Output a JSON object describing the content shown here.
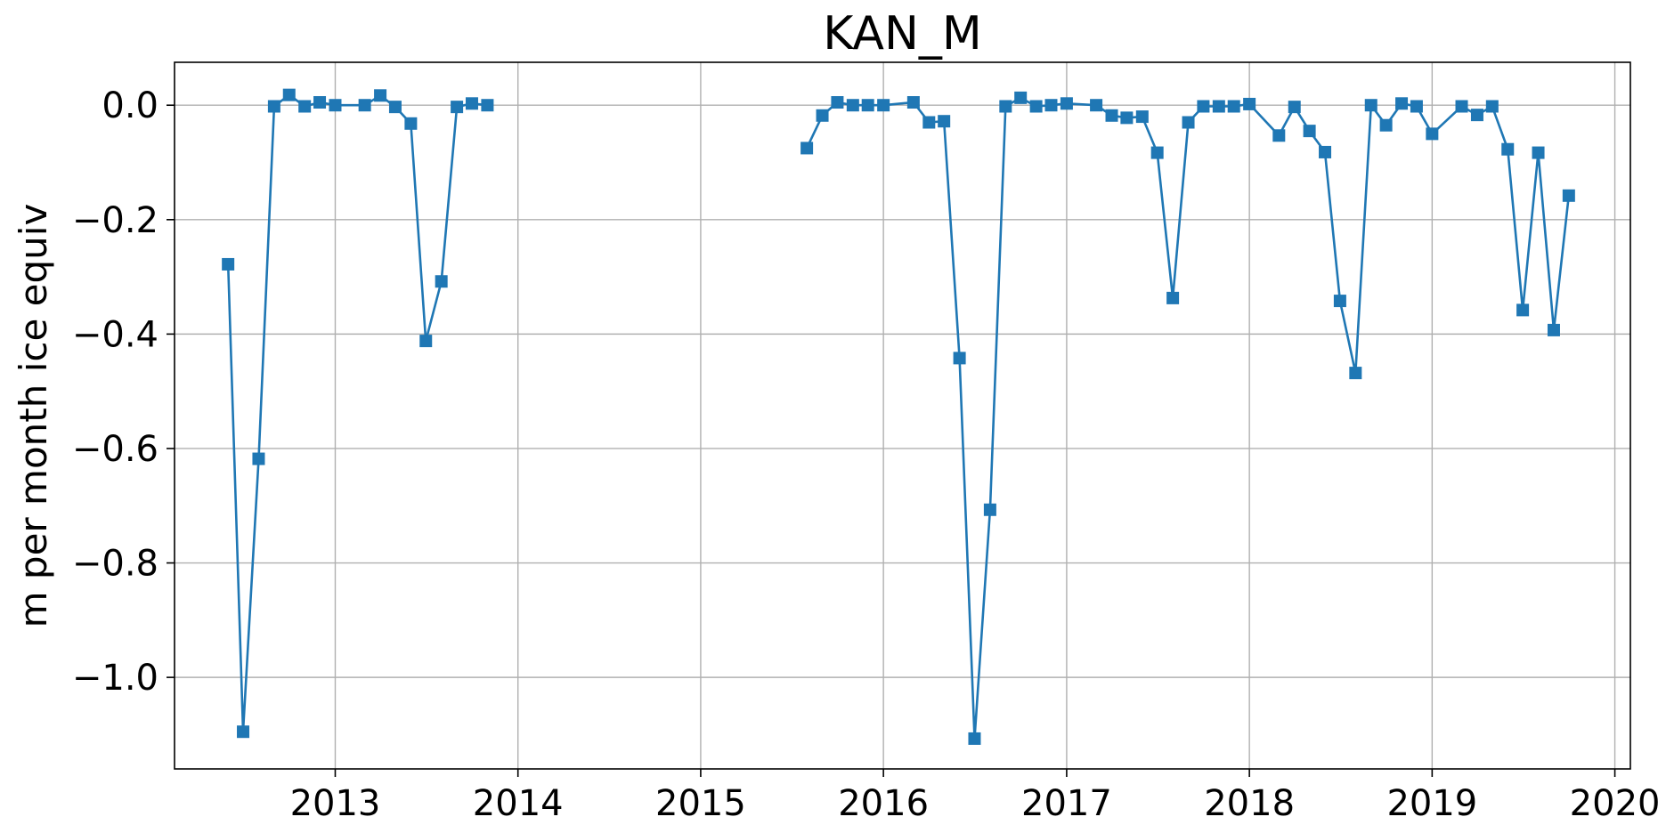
{
  "chart_data": {
    "type": "line",
    "title": "KAN_M",
    "xlabel": "",
    "ylabel": "m per month ice equiv",
    "x_axis": {
      "type": "date",
      "range": [
        "2012-02-15",
        "2020-02-01"
      ],
      "ticks": [
        "2013",
        "2014",
        "2015",
        "2016",
        "2017",
        "2018",
        "2019",
        "2020"
      ]
    },
    "y_axis": {
      "range": [
        -1.16,
        0.075
      ],
      "ticks": [
        0.0,
        -0.2,
        -0.4,
        -0.6,
        -0.8,
        -1.0
      ],
      "tick_labels": [
        "0.0",
        "−0.2",
        "−0.4",
        "−0.6",
        "−0.8",
        "−1.0"
      ]
    },
    "grid": true,
    "marker": "square",
    "color": "#1f77b4",
    "series": [
      {
        "segments": [
          [
            [
              "2012-06-01",
              -0.278
            ],
            [
              "2012-07-01",
              -1.095
            ],
            [
              "2012-08-01",
              -0.618
            ],
            [
              "2012-09-01",
              -0.002
            ],
            [
              "2012-10-01",
              0.018
            ],
            [
              "2012-11-01",
              -0.002
            ],
            [
              "2012-12-01",
              0.005
            ],
            [
              "2013-01-01",
              0.0
            ],
            [
              "2013-03-01",
              0.0
            ],
            [
              "2013-04-01",
              0.017
            ],
            [
              "2013-05-01",
              -0.003
            ],
            [
              "2013-06-01",
              -0.032
            ],
            [
              "2013-07-01",
              -0.412
            ],
            [
              "2013-08-01",
              -0.308
            ],
            [
              "2013-09-01",
              -0.003
            ],
            [
              "2013-10-01",
              0.003
            ],
            [
              "2013-11-01",
              0.0
            ]
          ],
          [
            [
              "2015-08-01",
              -0.075
            ],
            [
              "2015-09-01",
              -0.018
            ],
            [
              "2015-10-01",
              0.005
            ],
            [
              "2015-11-01",
              0.0
            ],
            [
              "2015-12-01",
              0.0
            ],
            [
              "2016-01-01",
              0.0
            ],
            [
              "2016-03-01",
              0.005
            ],
            [
              "2016-04-01",
              -0.03
            ],
            [
              "2016-05-01",
              -0.028
            ],
            [
              "2016-06-01",
              -0.442
            ],
            [
              "2016-07-01",
              -1.107
            ],
            [
              "2016-08-01",
              -0.707
            ],
            [
              "2016-09-01",
              -0.002
            ],
            [
              "2016-10-01",
              0.013
            ],
            [
              "2016-11-01",
              -0.002
            ],
            [
              "2016-12-01",
              0.0
            ],
            [
              "2017-01-01",
              0.003
            ],
            [
              "2017-03-01",
              0.0
            ],
            [
              "2017-04-01",
              -0.018
            ],
            [
              "2017-05-01",
              -0.022
            ],
            [
              "2017-06-01",
              -0.02
            ],
            [
              "2017-07-01",
              -0.083
            ],
            [
              "2017-08-01",
              -0.337
            ],
            [
              "2017-09-01",
              -0.03
            ],
            [
              "2017-10-01",
              -0.002
            ],
            [
              "2017-11-01",
              -0.002
            ],
            [
              "2017-12-01",
              -0.002
            ],
            [
              "2018-01-01",
              0.002
            ],
            [
              "2018-03-01",
              -0.053
            ],
            [
              "2018-04-01",
              -0.003
            ],
            [
              "2018-05-01",
              -0.045
            ],
            [
              "2018-06-01",
              -0.082
            ],
            [
              "2018-07-01",
              -0.342
            ],
            [
              "2018-08-01",
              -0.468
            ],
            [
              "2018-09-01",
              0.0
            ],
            [
              "2018-10-01",
              -0.035
            ],
            [
              "2018-11-01",
              0.003
            ],
            [
              "2018-12-01",
              -0.002
            ],
            [
              "2019-01-01",
              -0.05
            ],
            [
              "2019-03-01",
              -0.002
            ],
            [
              "2019-04-01",
              -0.017
            ],
            [
              "2019-05-01",
              -0.002
            ],
            [
              "2019-06-01",
              -0.077
            ],
            [
              "2019-07-01",
              -0.358
            ],
            [
              "2019-08-01",
              -0.083
            ],
            [
              "2019-09-01",
              -0.393
            ],
            [
              "2019-10-01",
              -0.158
            ]
          ]
        ]
      }
    ]
  }
}
